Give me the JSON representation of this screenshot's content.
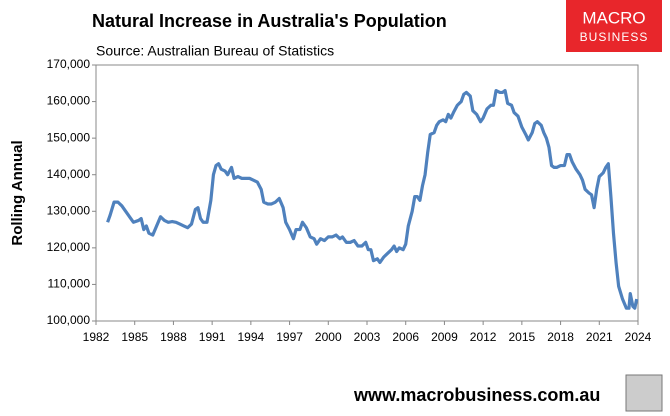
{
  "chart_data": {
    "type": "line",
    "title": "Natural Increase in Australia's Population",
    "subtitle": "Source: Australian Bureau of Statistics",
    "ylabel": "Rolling Annual",
    "logo": {
      "line1": "MACRO",
      "line2": "BUSINESS"
    },
    "footer": "www.macrobusiness.com.au",
    "xlim": [
      1982,
      2024
    ],
    "xticks": [
      1982,
      1985,
      1988,
      1991,
      1994,
      1997,
      2000,
      2003,
      2006,
      2009,
      2012,
      2015,
      2018,
      2021,
      2024
    ],
    "ylim": [
      100000,
      170000
    ],
    "yticks": [
      {
        "value": 100000,
        "label": "100,000"
      },
      {
        "value": 110000,
        "label": "110,000"
      },
      {
        "value": 120000,
        "label": "120,000"
      },
      {
        "value": 130000,
        "label": "130,000"
      },
      {
        "value": 140000,
        "label": "140,000"
      },
      {
        "value": 150000,
        "label": "150,000"
      },
      {
        "value": 160000,
        "label": "160,000"
      },
      {
        "value": 170000,
        "label": "170,000"
      }
    ],
    "grid": false,
    "series": [
      {
        "color": "#4f81bd",
        "x": [
          1982.9,
          1983.1,
          1983.4,
          1983.7,
          1984.0,
          1984.3,
          1984.6,
          1984.9,
          1985.3,
          1985.5,
          1985.7,
          1985.9,
          1986.1,
          1986.4,
          1986.7,
          1987.0,
          1987.3,
          1987.6,
          1987.9,
          1988.2,
          1988.5,
          1988.8,
          1989.1,
          1989.4,
          1989.7,
          1989.9,
          1990.1,
          1990.3,
          1990.6,
          1990.9,
          1991.1,
          1991.3,
          1991.5,
          1991.7,
          1992.0,
          1992.2,
          1992.5,
          1992.7,
          1993.0,
          1993.3,
          1993.6,
          1993.9,
          1994.2,
          1994.5,
          1994.8,
          1995.0,
          1995.3,
          1995.6,
          1995.9,
          1996.2,
          1996.5,
          1996.7,
          1997.0,
          1997.3,
          1997.5,
          1997.8,
          1998.0,
          1998.3,
          1998.6,
          1998.9,
          1999.1,
          1999.4,
          1999.7,
          2000.0,
          2000.3,
          2000.6,
          2000.9,
          2001.1,
          2001.4,
          2001.7,
          2002.0,
          2002.3,
          2002.6,
          2002.9,
          2003.1,
          2003.3,
          2003.5,
          2003.8,
          2004.0,
          2004.3,
          2004.6,
          2004.9,
          2005.1,
          2005.3,
          2005.5,
          2005.8,
          2006.0,
          2006.2,
          2006.5,
          2006.7,
          2006.9,
          2007.1,
          2007.3,
          2007.5,
          2007.7,
          2007.9,
          2008.2,
          2008.4,
          2008.6,
          2008.9,
          2009.1,
          2009.3,
          2009.5,
          2009.7,
          2010.0,
          2010.3,
          2010.5,
          2010.7,
          2011.0,
          2011.2,
          2011.5,
          2011.8,
          2012.0,
          2012.3,
          2012.6,
          2012.8,
          2013.0,
          2013.3,
          2013.5,
          2013.7,
          2013.9,
          2014.2,
          2014.4,
          2014.7,
          2015.0,
          2015.3,
          2015.5,
          2015.8,
          2016.0,
          2016.2,
          2016.5,
          2016.7,
          2016.9,
          2017.1,
          2017.3,
          2017.5,
          2017.7,
          2018.0,
          2018.3,
          2018.5,
          2018.7,
          2018.9,
          2019.2,
          2019.5,
          2019.7,
          2019.9,
          2020.2,
          2020.4,
          2020.6,
          2020.8,
          2021.0,
          2021.3,
          2021.5,
          2021.7,
          2021.9,
          2022.1,
          2022.3,
          2022.5,
          2022.8,
          2023.1,
          2023.3,
          2023.4,
          2023.6,
          2023.75,
          2023.9
        ],
        "values": [
          127000,
          129000,
          132500,
          132500,
          131500,
          130000,
          128500,
          127000,
          127500,
          128000,
          125000,
          126000,
          124000,
          123500,
          126000,
          128500,
          127500,
          127000,
          127200,
          127000,
          126500,
          126000,
          125500,
          126500,
          130500,
          131000,
          128000,
          127000,
          127000,
          133000,
          140000,
          142500,
          143000,
          141500,
          141000,
          140000,
          142000,
          139000,
          139500,
          139000,
          139000,
          139000,
          138500,
          138000,
          136000,
          132500,
          132000,
          132000,
          132500,
          133500,
          131000,
          127000,
          125000,
          122500,
          125000,
          125000,
          127000,
          125500,
          123000,
          122500,
          121000,
          122500,
          122000,
          123000,
          123000,
          123500,
          122500,
          123000,
          121500,
          121500,
          122000,
          120500,
          120500,
          121500,
          119500,
          119500,
          116500,
          117000,
          116000,
          117500,
          118500,
          119500,
          120500,
          119000,
          120000,
          119500,
          121000,
          126000,
          130000,
          134000,
          134000,
          133000,
          137000,
          140000,
          146000,
          151000,
          151500,
          153500,
          154500,
          155000,
          154500,
          156500,
          155500,
          157000,
          159000,
          160000,
          162000,
          162500,
          161500,
          157500,
          156500,
          154500,
          155500,
          158000,
          159000,
          159000,
          163000,
          162500,
          162500,
          163000,
          159500,
          159000,
          157000,
          156000,
          153000,
          151000,
          149500,
          151500,
          154000,
          154500,
          153500,
          151500,
          150000,
          147500,
          142500,
          142000,
          142000,
          142500,
          142500,
          145500,
          145500,
          143500,
          141500,
          140000,
          138500,
          136000,
          135000,
          134500,
          131000,
          136000,
          139500,
          140500,
          142000,
          143000,
          134000,
          124000,
          116000,
          109500,
          106000,
          103500,
          103500,
          107500,
          104000,
          103500,
          106000
        ]
      }
    ]
  }
}
